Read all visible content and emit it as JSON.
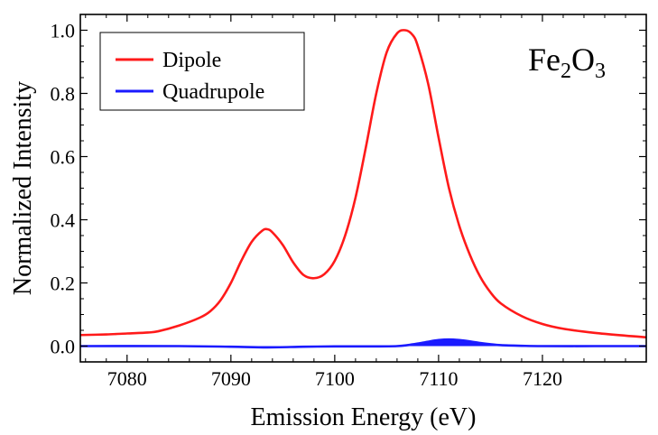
{
  "chart_data": {
    "type": "line",
    "title": "",
    "xlabel": "Emission Energy (eV)",
    "ylabel": "Normalized Intensity",
    "xlim": [
      7075.5,
      7130
    ],
    "ylim": [
      -0.05,
      1.05
    ],
    "x_ticks": [
      7080,
      7090,
      7100,
      7110,
      7120
    ],
    "y_ticks": [
      0.0,
      0.2,
      0.4,
      0.6,
      0.8,
      1.0
    ],
    "x_tick_labels": [
      "7080",
      "7090",
      "7100",
      "7110",
      "7120"
    ],
    "y_tick_labels": [
      "0.0",
      "0.2",
      "0.4",
      "0.6",
      "0.8",
      "1.0"
    ],
    "grid": false,
    "legend_position": "top-left",
    "annotation": {
      "base": "Fe",
      "sub1": "2",
      "mid": "O",
      "sub2": "3"
    },
    "series": [
      {
        "name": "Dipole",
        "color": "#ff1a1a",
        "x": [
          7075.5,
          7078,
          7080,
          7082,
          7083,
          7085,
          7087,
          7088,
          7089,
          7090,
          7091,
          7092,
          7093,
          7093.5,
          7094,
          7095,
          7096,
          7097,
          7098,
          7099,
          7100,
          7101,
          7102,
          7103,
          7104,
          7105,
          7106,
          7106.8,
          7107.5,
          7108,
          7109,
          7110,
          7111,
          7112,
          7113,
          7114,
          7115,
          7116,
          7118,
          7120,
          7122,
          7125,
          7128,
          7130
        ],
        "y": [
          0.035,
          0.037,
          0.04,
          0.043,
          0.047,
          0.065,
          0.09,
          0.11,
          0.145,
          0.2,
          0.27,
          0.33,
          0.365,
          0.37,
          0.36,
          0.32,
          0.265,
          0.225,
          0.215,
          0.228,
          0.27,
          0.35,
          0.47,
          0.63,
          0.8,
          0.93,
          0.99,
          1.0,
          0.985,
          0.95,
          0.83,
          0.66,
          0.5,
          0.38,
          0.29,
          0.22,
          0.17,
          0.135,
          0.095,
          0.07,
          0.055,
          0.042,
          0.033,
          0.028
        ]
      },
      {
        "name": "Quadrupole",
        "color": "#1a1aff",
        "fill": true,
        "x": [
          7075.5,
          7085,
          7090,
          7093.5,
          7097,
          7100,
          7104,
          7106,
          7107,
          7108,
          7109,
          7110,
          7111,
          7112,
          7113,
          7114,
          7115,
          7116,
          7118,
          7120,
          7125,
          7130
        ],
        "y": [
          0.0,
          0.0,
          -0.002,
          -0.004,
          -0.002,
          -0.001,
          -0.001,
          0.0,
          0.003,
          0.008,
          0.014,
          0.019,
          0.021,
          0.019,
          0.015,
          0.01,
          0.006,
          0.003,
          0.001,
          0.0,
          0.0,
          0.0
        ]
      }
    ]
  }
}
